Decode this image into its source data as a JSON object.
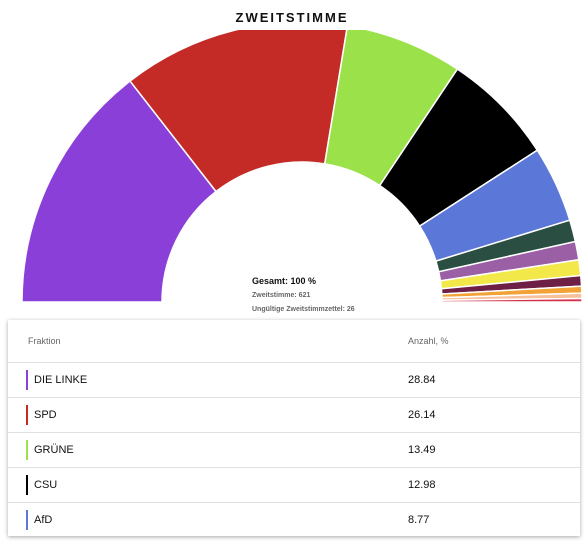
{
  "chart_data": {
    "type": "pie",
    "variant": "semicircle-donut",
    "title": "ZWEITSTIMME",
    "categories": [
      "DIE LINKE",
      "SPD",
      "GRÜNE",
      "CSU",
      "AfD",
      "",
      "",
      "",
      "",
      "",
      "",
      ""
    ],
    "values": [
      28.84,
      26.14,
      13.49,
      12.98,
      8.77,
      2.5,
      2.1,
      1.8,
      1.2,
      0.8,
      0.6,
      0.4
    ],
    "colors": [
      "#8a3fd8",
      "#c42b26",
      "#9be24a",
      "#000000",
      "#5b78d9",
      "#2a4f42",
      "#9a5fa5",
      "#f3e84a",
      "#6e1f45",
      "#f2a237",
      "#f6c19a",
      "#d42f4d"
    ],
    "legend": "table-below"
  },
  "center": {
    "total": "Gesamt: 100 %",
    "votes": "Zweitstimme: 621",
    "invalid": "Ungültige Zweitstimmzettel: 26"
  },
  "table": {
    "col_fraction": "Fraktion",
    "col_count": "Anzahl, %",
    "rows": [
      {
        "name": "DIE LINKE",
        "value": "28.84",
        "color": "#8a3fd8"
      },
      {
        "name": "SPD",
        "value": "26.14",
        "color": "#c42b26"
      },
      {
        "name": "GRÜNE",
        "value": "13.49",
        "color": "#9be24a"
      },
      {
        "name": "CSU",
        "value": "12.98",
        "color": "#000000"
      },
      {
        "name": "AfD",
        "value": "8.77",
        "color": "#5b78d9"
      }
    ]
  }
}
